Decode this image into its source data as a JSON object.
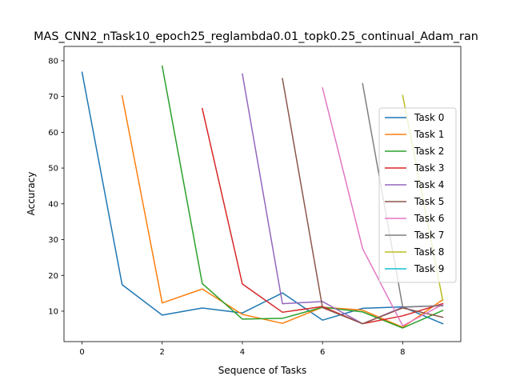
{
  "chart_data": {
    "type": "line",
    "title": "MAS_CNN2_nTask10_epoch25_reglambda0.01_topk0.25_continual_Adam_ran",
    "xlabel": "Sequence of Tasks",
    "ylabel": "Accuracy",
    "xlim": [
      -0.45,
      9.45
    ],
    "ylim": [
      1.5,
      84.0
    ],
    "xticks": [
      0,
      2,
      4,
      6,
      8
    ],
    "yticks": [
      10,
      20,
      30,
      40,
      50,
      60,
      70,
      80
    ],
    "grid": false,
    "legend_position": "right",
    "series": [
      {
        "name": "Task 0",
        "color": "#1f77b4",
        "x": [
          0,
          1,
          2,
          3,
          4,
          5,
          6,
          7,
          8,
          9
        ],
        "y": [
          76.8,
          17.4,
          8.9,
          10.9,
          9.5,
          15.1,
          7.5,
          10.8,
          11.2,
          6.5
        ]
      },
      {
        "name": "Task 1",
        "color": "#ff7f0e",
        "x": [
          1,
          2,
          3,
          4,
          5,
          6,
          7,
          8,
          9
        ],
        "y": [
          70.2,
          12.3,
          16.2,
          9.1,
          6.6,
          11.1,
          10.3,
          5.5,
          13.2
        ]
      },
      {
        "name": "Task 2",
        "color": "#2ca02c",
        "x": [
          2,
          3,
          4,
          5,
          6,
          7,
          8,
          9
        ],
        "y": [
          78.5,
          17.7,
          7.8,
          8.0,
          11.1,
          9.8,
          5.3,
          10.2
        ]
      },
      {
        "name": "Task 3",
        "color": "#d62728",
        "x": [
          3,
          4,
          5,
          6,
          7,
          8,
          9
        ],
        "y": [
          66.6,
          17.6,
          9.7,
          11.3,
          6.5,
          8.7,
          12.1
        ]
      },
      {
        "name": "Task 4",
        "color": "#9467bd",
        "x": [
          4,
          5,
          6,
          7,
          8,
          9
        ],
        "y": [
          76.3,
          12.1,
          12.7,
          6.5,
          11.1,
          11.6
        ]
      },
      {
        "name": "Task 5",
        "color": "#8c564b",
        "x": [
          5,
          6,
          7,
          8,
          9
        ],
        "y": [
          75.0,
          11.0,
          6.5,
          10.9,
          8.3
        ]
      },
      {
        "name": "Task 6",
        "color": "#e377c2",
        "x": [
          6,
          7,
          8,
          9
        ],
        "y": [
          72.4,
          27.5,
          5.9,
          11.9
        ]
      },
      {
        "name": "Task 7",
        "color": "#7f7f7f",
        "x": [
          7,
          8,
          9
        ],
        "y": [
          73.6,
          11.2,
          11.5
        ]
      },
      {
        "name": "Task 8",
        "color": "#bcbd22",
        "x": [
          8,
          9
        ],
        "y": [
          70.3,
          13.0
        ]
      },
      {
        "name": "Task 9",
        "color": "#17becf",
        "x": [],
        "y": []
      }
    ]
  }
}
